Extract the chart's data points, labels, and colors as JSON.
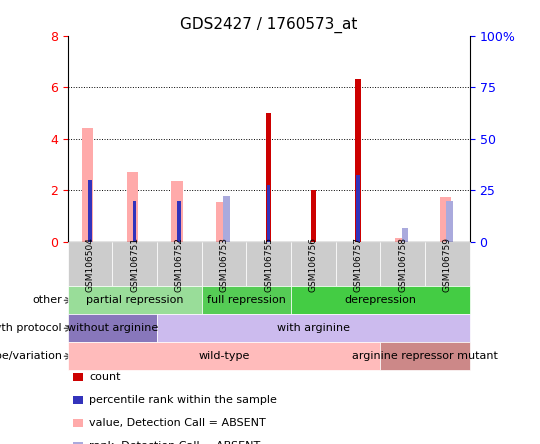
{
  "title": "GDS2427 / 1760573_at",
  "samples": [
    "GSM106504",
    "GSM106751",
    "GSM106752",
    "GSM106753",
    "GSM106755",
    "GSM106756",
    "GSM106757",
    "GSM106758",
    "GSM106759"
  ],
  "count_values": [
    0,
    0,
    0,
    0,
    5.0,
    2.0,
    6.3,
    0,
    0
  ],
  "percentile_rank": [
    2.4,
    1.6,
    1.6,
    0,
    2.2,
    0,
    2.6,
    0,
    0
  ],
  "value_absent": [
    4.4,
    2.7,
    2.35,
    1.55,
    0,
    0,
    0,
    0.15,
    1.75
  ],
  "rank_absent": [
    0,
    0,
    0,
    1.8,
    0,
    0,
    0,
    0.55,
    1.6
  ],
  "ylim_left": [
    0,
    8
  ],
  "ylim_right": [
    0,
    100
  ],
  "yticks_left": [
    0,
    2,
    4,
    6,
    8
  ],
  "yticks_right": [
    0,
    25,
    50,
    75,
    100
  ],
  "yticklabels_left": [
    "0",
    "2",
    "4",
    "6",
    "8"
  ],
  "yticklabels_right": [
    "0",
    "25",
    "50",
    "75",
    "100%"
  ],
  "count_color": "#cc0000",
  "percentile_color": "#3333bb",
  "value_absent_color": "#ffaaaa",
  "rank_absent_color": "#aaaadd",
  "annot_rows": [
    {
      "label": "other",
      "segments": [
        {
          "text": "partial repression",
          "span": [
            0,
            3
          ],
          "color": "#99dd99"
        },
        {
          "text": "full repression",
          "span": [
            3,
            5
          ],
          "color": "#55cc55"
        },
        {
          "text": "derepression",
          "span": [
            5,
            9
          ],
          "color": "#44cc44"
        }
      ]
    },
    {
      "label": "growth protocol",
      "segments": [
        {
          "text": "without arginine",
          "span": [
            0,
            2
          ],
          "color": "#8877bb"
        },
        {
          "text": "with arginine",
          "span": [
            2,
            9
          ],
          "color": "#ccbbee"
        }
      ]
    },
    {
      "label": "genotype/variation",
      "segments": [
        {
          "text": "wild-type",
          "span": [
            0,
            7
          ],
          "color": "#ffbbbb"
        },
        {
          "text": "arginine repressor mutant",
          "span": [
            7,
            9
          ],
          "color": "#cc8888"
        }
      ]
    }
  ],
  "legend_items": [
    {
      "label": "count",
      "color": "#cc0000"
    },
    {
      "label": "percentile rank within the sample",
      "color": "#3333bb"
    },
    {
      "label": "value, Detection Call = ABSENT",
      "color": "#ffaaaa"
    },
    {
      "label": "rank, Detection Call = ABSENT",
      "color": "#aaaadd"
    }
  ],
  "title_fontsize": 11,
  "tick_label_fontsize": 8,
  "annot_fontsize": 8,
  "legend_fontsize": 8
}
